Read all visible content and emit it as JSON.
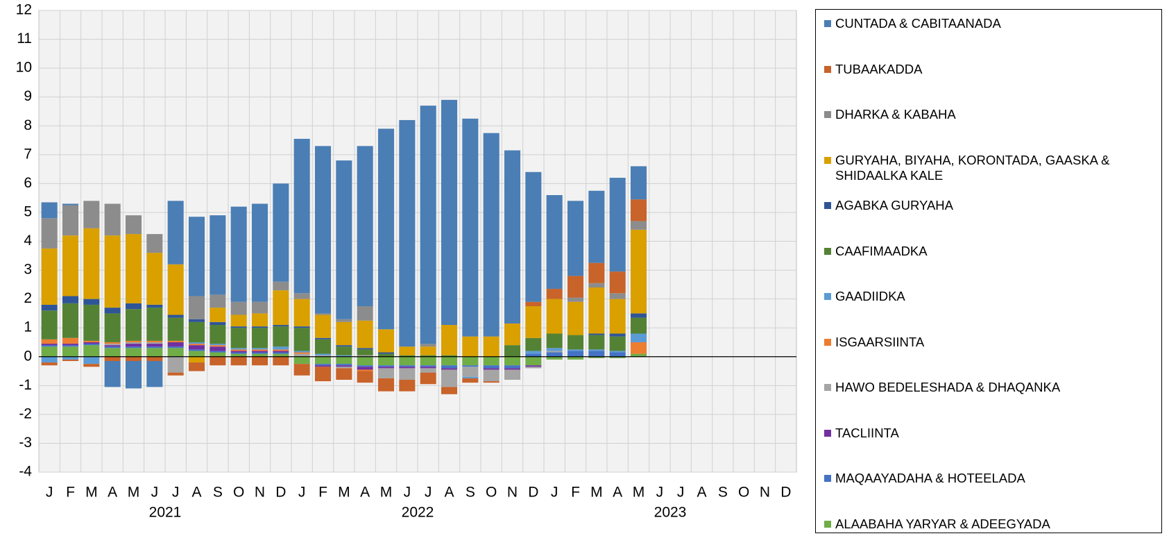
{
  "chart_data": {
    "type": "stacked_bar",
    "categories": [
      "J",
      "F",
      "M",
      "A",
      "M",
      "J",
      "J",
      "A",
      "S",
      "O",
      "N",
      "D",
      "J",
      "F",
      "M",
      "A",
      "M",
      "J",
      "J",
      "A",
      "S",
      "O",
      "N",
      "D",
      "J",
      "F",
      "M",
      "A",
      "M",
      "J",
      "J",
      "A",
      "S",
      "O",
      "N",
      "D"
    ],
    "year_labels": [
      "2021",
      "2022",
      "2023"
    ],
    "ylim": [
      -4,
      12
    ],
    "yticks": [
      -4,
      -3,
      -2,
      -1,
      0,
      1,
      2,
      3,
      4,
      5,
      6,
      7,
      8,
      9,
      10,
      11,
      12
    ],
    "grid": true,
    "series": [
      {
        "name": "CUNTADA & CABITAANADA",
        "color": "#4a7eb5",
        "values": [
          0.55,
          0.05,
          0,
          -0.9,
          -0.95,
          -0.9,
          2.2,
          2.75,
          2.75,
          3.3,
          3.4,
          3.4,
          5.35,
          5.8,
          5.5,
          5.55,
          6.95,
          7.85,
          8.25,
          7.8,
          7.55,
          7.05,
          6.0,
          4.5,
          3.25,
          2.6,
          2.5,
          3.25,
          1.15,
          null,
          null,
          null,
          null,
          null,
          null,
          null
        ]
      },
      {
        "name": "TUBAAKADDA",
        "color": "#c8632a",
        "values": [
          -0.1,
          -0.05,
          -0.1,
          -0.15,
          -0.15,
          -0.15,
          -0.1,
          -0.3,
          -0.3,
          -0.3,
          -0.3,
          -0.3,
          -0.4,
          -0.5,
          -0.4,
          -0.4,
          -0.45,
          -0.4,
          -0.4,
          -0.25,
          -0.15,
          -0.05,
          0,
          0.15,
          0.35,
          0.75,
          0.7,
          0.75,
          0.75,
          null,
          null,
          null,
          null,
          null,
          null,
          null
        ]
      },
      {
        "name": "DHARKA & KABAHA",
        "color": "#8c8c8c",
        "values": [
          1.05,
          1.05,
          0.95,
          1.1,
          0.65,
          0.65,
          0,
          0.8,
          0.45,
          0.45,
          0.4,
          0.3,
          0.2,
          0.05,
          0.1,
          0.5,
          0,
          0,
          0.1,
          0,
          0,
          0,
          0,
          0,
          0,
          0.15,
          0.15,
          0.2,
          0.3,
          null,
          null,
          null,
          null,
          null,
          null,
          null
        ]
      },
      {
        "name": "GURYAHA, BIYAHA, KORONTADA, GAASKA & SHIDAALKA KALE",
        "color": "#d9a000",
        "values": [
          1.95,
          2.1,
          2.45,
          2.5,
          2.4,
          1.8,
          1.75,
          -0.2,
          0.5,
          0.4,
          0.45,
          1.2,
          0.95,
          0.8,
          0.8,
          0.95,
          0.8,
          0.3,
          0.3,
          1.05,
          0.7,
          0.7,
          0.75,
          1.1,
          1.2,
          1.15,
          1.6,
          1.2,
          2.9,
          null,
          null,
          null,
          null,
          null,
          null,
          null
        ]
      },
      {
        "name": "AGABKA GURYAHA",
        "color": "#2f5597",
        "values": [
          0.2,
          0.25,
          0.2,
          0.2,
          0.2,
          0.1,
          0.1,
          0.1,
          0.1,
          0.05,
          0.05,
          0.05,
          0.05,
          0.05,
          0.05,
          0.05,
          0.05,
          0,
          0,
          0,
          0,
          0,
          0,
          0,
          0,
          0,
          0.05,
          0.1,
          0.15,
          null,
          null,
          null,
          null,
          null,
          null,
          null
        ]
      },
      {
        "name": "CAAFIMAADKA",
        "color": "#548235",
        "values": [
          1.0,
          1.2,
          1.25,
          1.0,
          1.1,
          1.15,
          0.8,
          0.7,
          0.65,
          0.7,
          0.7,
          0.7,
          0.8,
          0.5,
          0.3,
          0.2,
          0.1,
          0.05,
          0.05,
          0.05,
          0,
          0,
          0.4,
          0.45,
          0.5,
          0.5,
          0.5,
          0.5,
          0.55,
          null,
          null,
          null,
          null,
          null,
          null,
          null
        ]
      },
      {
        "name": "GAADIIDKA",
        "color": "#5b9bd5",
        "values": [
          -0.2,
          -0.1,
          -0.25,
          0,
          0,
          0,
          0,
          0.05,
          0.05,
          0.05,
          0.05,
          0.1,
          0.05,
          0.05,
          0.05,
          0,
          0,
          0,
          0,
          0,
          -0.05,
          0,
          0,
          0.1,
          0.1,
          0.05,
          0.05,
          0.05,
          0.3,
          null,
          null,
          null,
          null,
          null,
          null,
          null
        ]
      },
      {
        "name": "ISGAARSIINTA",
        "color": "#ed7d31",
        "values": [
          0.15,
          0.2,
          0.05,
          0.05,
          0.05,
          0.05,
          0.05,
          0.05,
          0.05,
          0.05,
          0.05,
          0.05,
          0.05,
          0,
          0,
          -0.05,
          0,
          0,
          0,
          0,
          0,
          0,
          0,
          0,
          0,
          0,
          0,
          0,
          0.4,
          null,
          null,
          null,
          null,
          null,
          null,
          null
        ]
      },
      {
        "name": "HAWO BEDELESHADA & DHAQANKA",
        "color": "#a5a5a5",
        "values": [
          0,
          0,
          0,
          0.05,
          0.05,
          0.05,
          -0.55,
          0,
          0,
          0,
          0,
          0,
          0.1,
          0.05,
          -0.05,
          0.05,
          -0.35,
          -0.4,
          -0.15,
          -0.6,
          -0.35,
          -0.4,
          -0.35,
          -0.05,
          0.05,
          0,
          0,
          0,
          0,
          null,
          null,
          null,
          null,
          null,
          null,
          null
        ]
      },
      {
        "name": "TACLIINTA",
        "color": "#7030a0",
        "values": [
          0.05,
          0.05,
          0.05,
          0.05,
          0.1,
          0.1,
          0.15,
          0.15,
          0.15,
          0.05,
          0.05,
          0.05,
          0,
          -0.05,
          -0.05,
          -0.1,
          -0.05,
          -0.05,
          -0.05,
          -0.05,
          0,
          -0.05,
          -0.05,
          -0.05,
          0,
          0,
          0,
          0,
          0,
          null,
          null,
          null,
          null,
          null,
          null,
          null
        ]
      },
      {
        "name": "MAQAAYADAHA & HOTEELADA",
        "color": "#4472c4",
        "values": [
          0.05,
          0.05,
          0.05,
          0.05,
          0.05,
          0.05,
          0.05,
          0.05,
          0.05,
          0.05,
          0.05,
          0.05,
          0,
          -0.05,
          -0.05,
          -0.05,
          -0.05,
          -0.05,
          -0.05,
          -0.1,
          -0.05,
          -0.1,
          -0.1,
          0.1,
          0.15,
          0.2,
          0.2,
          0.15,
          0,
          null,
          null,
          null,
          null,
          null,
          null,
          null
        ]
      },
      {
        "name": "ALAABAHA YARYAR & ADEEGYADA",
        "color": "#70ad47",
        "values": [
          0.35,
          0.35,
          0.4,
          0.3,
          0.3,
          0.3,
          0.3,
          0.2,
          0.15,
          0.1,
          0.1,
          0.1,
          -0.25,
          -0.25,
          -0.25,
          -0.3,
          -0.3,
          -0.3,
          -0.3,
          -0.3,
          -0.3,
          -0.3,
          -0.3,
          -0.3,
          -0.1,
          -0.1,
          -0.05,
          -0.05,
          0.1,
          null,
          null,
          null,
          null,
          null,
          null,
          null
        ]
      }
    ]
  }
}
